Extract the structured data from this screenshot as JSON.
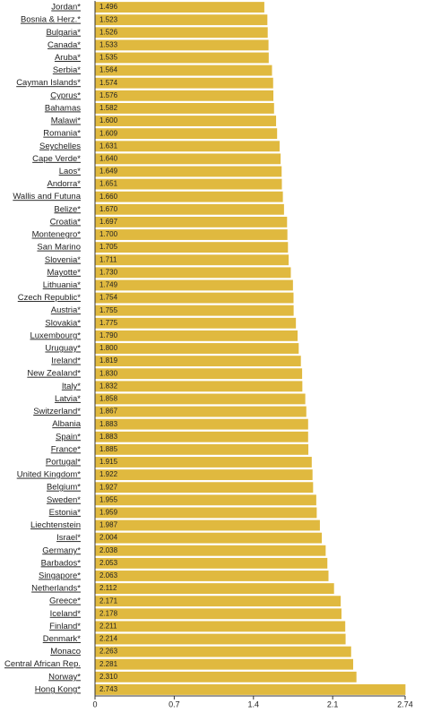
{
  "chart_data": {
    "type": "hbar",
    "categories": [
      "Jordan*",
      "Bosnia & Herz.*",
      "Bulgaria*",
      "Canada*",
      "Aruba*",
      "Serbia*",
      "Cayman Islands*",
      "Cyprus*",
      "Bahamas",
      "Malawi*",
      "Romania*",
      "Seychelles",
      "Cape Verde*",
      "Laos*",
      "Andorra*",
      "Wallis and Futuna",
      "Belize*",
      "Croatia*",
      "Montenegro*",
      "San Marino",
      "Slovenia*",
      "Mayotte*",
      "Lithuania*",
      "Czech Republic*",
      "Austria*",
      "Slovakia*",
      "Luxembourg*",
      "Uruguay*",
      "Ireland*",
      "New Zealand*",
      "Italy*",
      "Latvia*",
      "Switzerland*",
      "Albania",
      "Spain*",
      "France*",
      "Portugal*",
      "United Kingdom*",
      "Belgium*",
      "Sweden*",
      "Estonia*",
      "Liechtenstein",
      "Israel*",
      "Germany*",
      "Barbados*",
      "Singapore*",
      "Netherlands*",
      "Greece*",
      "Iceland*",
      "Finland*",
      "Denmark*",
      "Monaco",
      "Central African Rep.",
      "Norway*",
      "Hong Kong*"
    ],
    "values": [
      1.496,
      1.523,
      1.526,
      1.533,
      1.535,
      1.564,
      1.574,
      1.576,
      1.582,
      1.6,
      1.609,
      1.631,
      1.64,
      1.649,
      1.651,
      1.66,
      1.67,
      1.697,
      1.7,
      1.705,
      1.711,
      1.73,
      1.749,
      1.754,
      1.755,
      1.775,
      1.79,
      1.8,
      1.819,
      1.83,
      1.832,
      1.858,
      1.867,
      1.883,
      1.883,
      1.885,
      1.915,
      1.922,
      1.927,
      1.955,
      1.959,
      1.987,
      2.004,
      2.038,
      2.053,
      2.063,
      2.112,
      2.171,
      2.178,
      2.211,
      2.214,
      2.263,
      2.281,
      2.31,
      2.743
    ],
    "value_labels": [
      "1.496",
      "1.523",
      "1.526",
      "1.533",
      "1.535",
      "1.564",
      "1.574",
      "1.576",
      "1.582",
      "1.600",
      "1.609",
      "1.631",
      "1.640",
      "1.649",
      "1.651",
      "1.660",
      "1.670",
      "1.697",
      "1.700",
      "1.705",
      "1.711",
      "1.730",
      "1.749",
      "1.754",
      "1.755",
      "1.775",
      "1.790",
      "1.800",
      "1.819",
      "1.830",
      "1.832",
      "1.858",
      "1.867",
      "1.883",
      "1.883",
      "1.885",
      "1.915",
      "1.922",
      "1.927",
      "1.955",
      "1.959",
      "1.987",
      "2.004",
      "2.038",
      "2.053",
      "2.063",
      "2.112",
      "2.171",
      "2.178",
      "2.211",
      "2.214",
      "2.263",
      "2.281",
      "2.310",
      "2.743"
    ],
    "color": "#e0b93f",
    "xlim": [
      0,
      2.74
    ],
    "xticks": [
      0,
      0.7,
      1.4,
      2.1,
      2.74
    ]
  }
}
